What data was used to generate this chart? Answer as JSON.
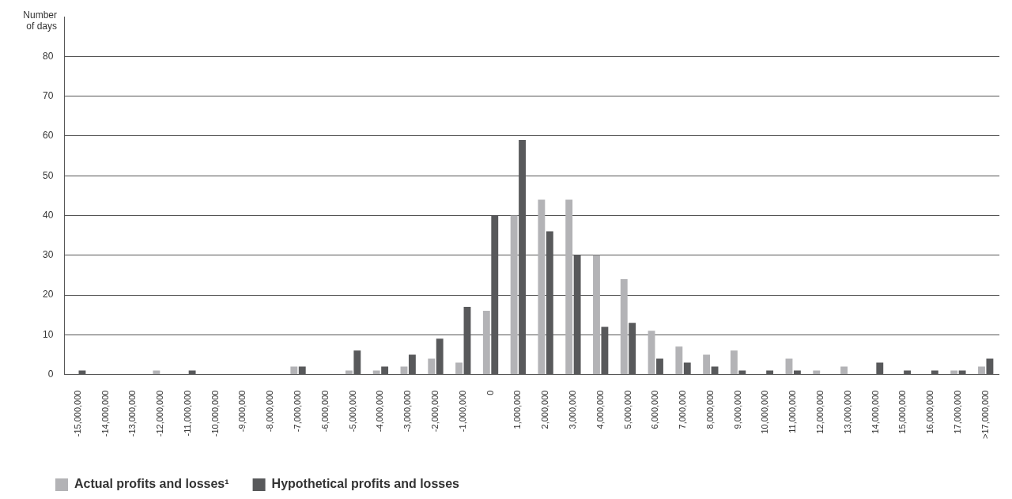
{
  "chart_data": {
    "type": "bar",
    "ylabel": "Number of days",
    "categories": [
      "-15,000,000",
      "-14,000,000",
      "-13,000,000",
      "-12,000,000",
      "-11,000,000",
      "-10,000,000",
      "-9,000,000",
      "-8,000,000",
      "-7,000,000",
      "-6,000,000",
      "-5,000,000",
      "-4,000,000",
      "-3,000,000",
      "-2,000,000",
      "-1,000,000",
      "0",
      "1,000,000",
      "2,000,000",
      "3,000,000",
      "4,000,000",
      "5,000,000",
      "6,000,000",
      "7,000,000",
      "8,000,000",
      "9,000,000",
      "10,000,000",
      "11,000,000",
      "12,000,000",
      "13,000,000",
      "14,000,000",
      "15,000,000",
      "16,000,000",
      "17,000,000",
      ">17,000,000"
    ],
    "series": [
      {
        "name": "Actual profits and losses¹",
        "color": "#b3b3b6",
        "values": [
          0,
          0,
          0,
          1,
          0,
          0,
          0,
          0,
          2,
          0,
          1,
          1,
          2,
          4,
          3,
          16,
          40,
          44,
          44,
          30,
          24,
          11,
          7,
          5,
          6,
          0,
          4,
          1,
          2,
          0,
          0,
          0,
          1,
          2
        ]
      },
      {
        "name": "Hypothetical profits and losses",
        "color": "#58595b",
        "values": [
          1,
          0,
          0,
          0,
          1,
          0,
          0,
          0,
          2,
          0,
          6,
          2,
          5,
          9,
          17,
          40,
          59,
          36,
          30,
          12,
          13,
          4,
          3,
          2,
          1,
          1,
          1,
          0,
          0,
          3,
          1,
          1,
          1,
          4
        ]
      }
    ],
    "ylim": [
      0,
      90
    ],
    "yticks": [
      0,
      10,
      20,
      30,
      40,
      50,
      60,
      70,
      80
    ],
    "grid": "y",
    "legend": "bottom left"
  }
}
